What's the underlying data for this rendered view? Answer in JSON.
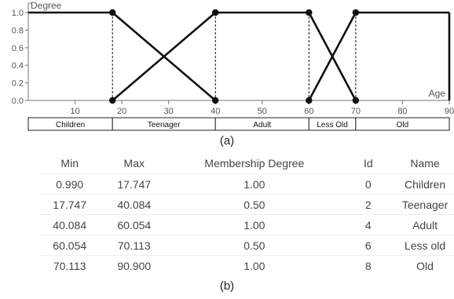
{
  "chart_data": {
    "type": "line",
    "ylabel": "Degree",
    "xlabel": "Age",
    "xlim": [
      0,
      90
    ],
    "ylim": [
      0,
      1
    ],
    "x_ticks": [
      10,
      20,
      30,
      40,
      50,
      60,
      70,
      80,
      90
    ],
    "y_ticks": [
      "1.0",
      "0.8",
      "0.6",
      "0.4",
      "0.2",
      "0.0"
    ],
    "series": [
      {
        "x": [
          0,
          18,
          40
        ],
        "y": [
          1,
          1,
          0
        ]
      },
      {
        "x": [
          18,
          40,
          60,
          70
        ],
        "y": [
          0,
          1,
          1,
          0
        ]
      },
      {
        "x": [
          60,
          70,
          90
        ],
        "y": [
          0,
          1,
          1
        ]
      }
    ],
    "markers": [
      [
        18,
        1
      ],
      [
        18,
        0
      ],
      [
        40,
        1
      ],
      [
        40,
        0
      ],
      [
        60,
        1
      ],
      [
        60,
        0
      ],
      [
        70,
        1
      ],
      [
        70,
        0
      ]
    ],
    "dashed_x": [
      18,
      40,
      60,
      70
    ],
    "end_marker_x": 90,
    "category_bands": [
      {
        "label": "Children",
        "from": 0,
        "to": 18
      },
      {
        "label": "Teenager",
        "from": 18,
        "to": 40
      },
      {
        "label": "Adult",
        "from": 40,
        "to": 60
      },
      {
        "label": "Less Old",
        "from": 60,
        "to": 70
      },
      {
        "label": "Old",
        "from": 70,
        "to": 90
      }
    ]
  },
  "caption_a": "(a)",
  "caption_b": "(b)",
  "table": {
    "columns": [
      "Min",
      "Max",
      "Membership Degree",
      "Id",
      "Name"
    ],
    "rows": [
      [
        "0.990",
        "17.747",
        "1.00",
        "0",
        "Children"
      ],
      [
        "17.747",
        "40.084",
        "0.50",
        "2",
        "Teenager"
      ],
      [
        "40.084",
        "60.054",
        "1.00",
        "4",
        "Adult"
      ],
      [
        "60.054",
        "70.113",
        "0.50",
        "6",
        "Less old"
      ],
      [
        "70.113",
        "90.900",
        "1.00",
        "8",
        "Old"
      ]
    ]
  }
}
